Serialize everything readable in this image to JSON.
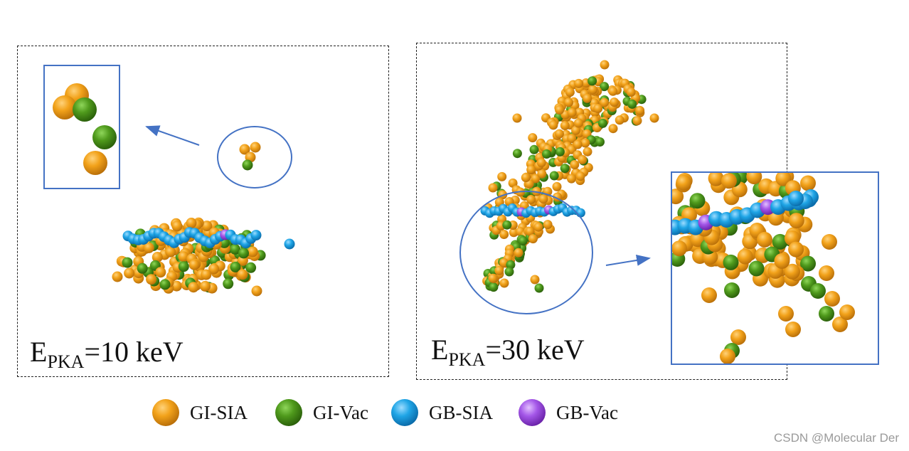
{
  "panels": [
    {
      "energy_symbol": "E",
      "energy_subscript": "PKA",
      "energy_value": "=10 keV"
    },
    {
      "energy_symbol": "E",
      "energy_subscript": "PKA",
      "energy_value": "=30 keV"
    }
  ],
  "legend": [
    {
      "label": "GI-SIA",
      "color": "#f2a21a",
      "icon": "orange-sphere-icon"
    },
    {
      "label": "GI-Vac",
      "color": "#4f9a1c",
      "icon": "green-sphere-icon"
    },
    {
      "label": "GB-SIA",
      "color": "#1fa5e6",
      "icon": "blue-sphere-icon"
    },
    {
      "label": "GB-Vac",
      "color": "#a457e8",
      "icon": "purple-sphere-icon"
    }
  ],
  "annotation_color": "#4472c4",
  "watermark": "CSDN @Molecular Der"
}
